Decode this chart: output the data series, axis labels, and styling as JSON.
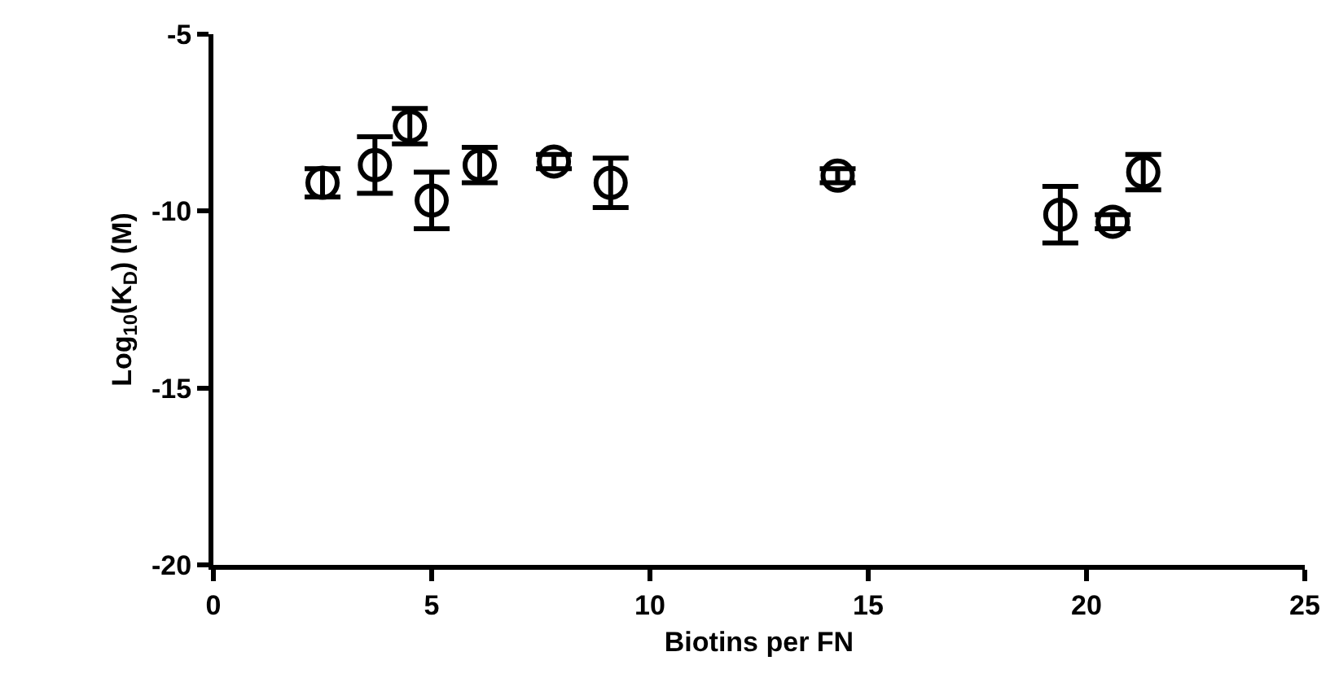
{
  "chart_data": {
    "type": "scatter",
    "xlabel": "Biotins per FN",
    "ylabel": "Log$_{10}$(K$_{D}$) (M)",
    "x": [
      2.5,
      3.7,
      4.5,
      5.0,
      6.1,
      7.8,
      9.1,
      14.3,
      19.4,
      20.6,
      21.3
    ],
    "series": [
      {
        "color": "#000000",
        "values": [
          -9.2,
          -8.7,
          -7.6,
          -9.7,
          -8.7,
          -8.6,
          -9.2,
          -9.0,
          -10.1,
          -10.3,
          -8.9
        ],
        "errors": [
          0.4,
          0.8,
          0.5,
          0.8,
          0.5,
          0.2,
          0.7,
          0.2,
          0.8,
          0.2,
          0.5
        ]
      }
    ],
    "xlim": [
      0,
      25
    ],
    "xticks": [
      0,
      5,
      10,
      15,
      20,
      25
    ],
    "ylim": [
      -20,
      -5
    ],
    "yticks": [
      -20,
      -15,
      -10,
      -5
    ],
    "marker": "circle"
  }
}
